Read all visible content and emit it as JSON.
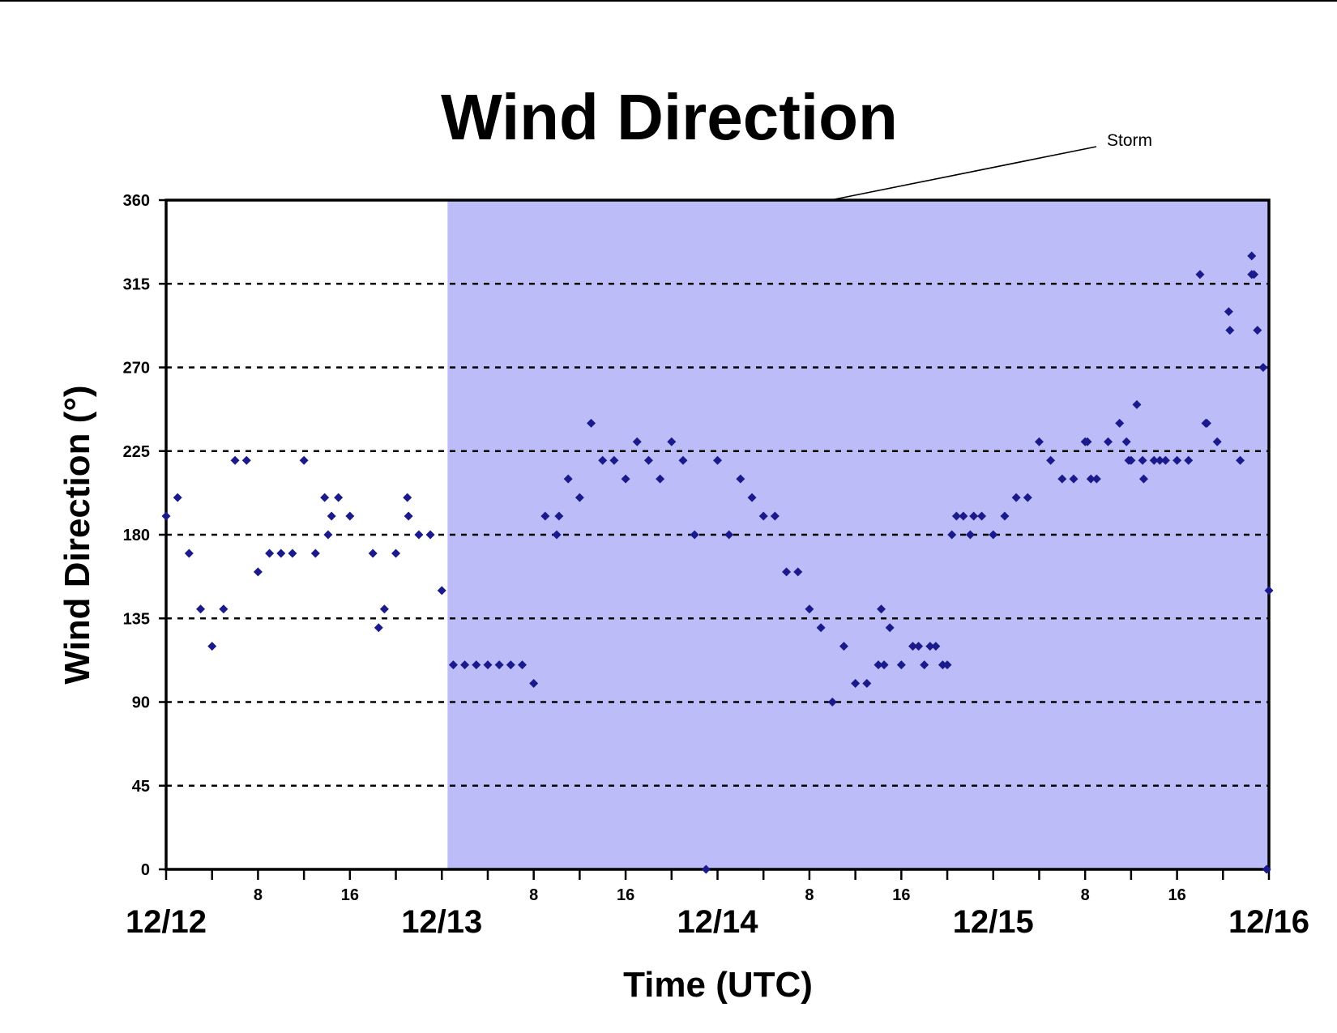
{
  "chart_data": {
    "type": "scatter",
    "title": "Wind Direction",
    "xlabel": "Time (UTC)",
    "ylabel": "Wind Direction (°)",
    "ylim": [
      0,
      360
    ],
    "yticks": [
      0,
      45,
      90,
      135,
      180,
      225,
      270,
      315,
      360
    ],
    "y_grid": "dotted",
    "xlim": [
      "12/12 00:00",
      "12/16 00:00"
    ],
    "date_labels": [
      "12/12",
      "12/13",
      "12/14",
      "12/15",
      "12/16"
    ],
    "hour_labels": [
      "8",
      "16"
    ],
    "annotation": {
      "text": "Storm",
      "region_start": "12/13 00:30",
      "region_end": "12/16 00:00"
    },
    "colors": {
      "marker": "#1a1a8c",
      "storm_shade": "#bcbcf8",
      "axis": "#000000",
      "grid": "#000000"
    },
    "series": [
      {
        "points": [
          [
            "12/12 00:00",
            190
          ],
          [
            "12/12 01:00",
            200
          ],
          [
            "12/12 02:00",
            170
          ],
          [
            "12/12 03:00",
            140
          ],
          [
            "12/12 04:00",
            120
          ],
          [
            "12/12 05:00",
            140
          ],
          [
            "12/12 06:00",
            220
          ],
          [
            "12/12 07:00",
            220
          ],
          [
            "12/12 08:00",
            160
          ],
          [
            "12/12 09:00",
            170
          ],
          [
            "12/12 10:00",
            170
          ],
          [
            "12/12 11:00",
            170
          ],
          [
            "12/12 12:00",
            220
          ],
          [
            "12/12 13:00",
            170
          ],
          [
            "12/12 13:48",
            200
          ],
          [
            "12/12 14:06",
            180
          ],
          [
            "12/12 14:24",
            190
          ],
          [
            "12/12 15:00",
            200
          ],
          [
            "12/12 16:00",
            190
          ],
          [
            "12/12 18:00",
            170
          ],
          [
            "12/12 18:30",
            130
          ],
          [
            "12/12 19:00",
            140
          ],
          [
            "12/12 20:00",
            170
          ],
          [
            "12/12 21:00",
            200
          ],
          [
            "12/12 21:06",
            190
          ],
          [
            "12/12 22:00",
            180
          ],
          [
            "12/12 23:00",
            180
          ],
          [
            "12/13 00:00",
            150
          ],
          [
            "12/13 01:00",
            110
          ],
          [
            "12/13 02:00",
            110
          ],
          [
            "12/13 03:00",
            110
          ],
          [
            "12/13 04:00",
            110
          ],
          [
            "12/13 05:00",
            110
          ],
          [
            "12/13 06:00",
            110
          ],
          [
            "12/13 07:00",
            110
          ],
          [
            "12/13 08:00",
            100
          ],
          [
            "12/13 09:00",
            190
          ],
          [
            "12/13 10:00",
            180
          ],
          [
            "12/13 10:12",
            190
          ],
          [
            "12/13 11:00",
            210
          ],
          [
            "12/13 12:00",
            200
          ],
          [
            "12/13 13:00",
            240
          ],
          [
            "12/13 14:00",
            220
          ],
          [
            "12/13 15:00",
            220
          ],
          [
            "12/13 16:00",
            210
          ],
          [
            "12/13 17:00",
            230
          ],
          [
            "12/13 18:00",
            220
          ],
          [
            "12/13 19:00",
            210
          ],
          [
            "12/13 20:00",
            230
          ],
          [
            "12/13 21:00",
            220
          ],
          [
            "12/13 22:00",
            180
          ],
          [
            "12/13 23:00",
            0
          ],
          [
            "12/14 00:00",
            220
          ],
          [
            "12/14 01:00",
            180
          ],
          [
            "12/14 02:00",
            210
          ],
          [
            "12/14 03:00",
            200
          ],
          [
            "12/14 04:00",
            190
          ],
          [
            "12/14 05:00",
            190
          ],
          [
            "12/14 06:00",
            160
          ],
          [
            "12/14 07:00",
            160
          ],
          [
            "12/14 08:00",
            140
          ],
          [
            "12/14 09:00",
            130
          ],
          [
            "12/14 10:00",
            90
          ],
          [
            "12/14 11:00",
            120
          ],
          [
            "12/14 12:00",
            100
          ],
          [
            "12/14 13:00",
            100
          ],
          [
            "12/14 14:00",
            110
          ],
          [
            "12/14 14:15",
            140
          ],
          [
            "12/14 14:30",
            110
          ],
          [
            "12/14 15:00",
            130
          ],
          [
            "12/14 16:00",
            110
          ],
          [
            "12/14 17:00",
            120
          ],
          [
            "12/14 17:30",
            120
          ],
          [
            "12/14 18:00",
            110
          ],
          [
            "12/14 18:30",
            120
          ],
          [
            "12/14 19:00",
            120
          ],
          [
            "12/14 19:36",
            110
          ],
          [
            "12/14 20:00",
            110
          ],
          [
            "12/14 20:24",
            180
          ],
          [
            "12/14 20:48",
            190
          ],
          [
            "12/14 21:24",
            190
          ],
          [
            "12/14 22:00",
            180
          ],
          [
            "12/14 22:18",
            190
          ],
          [
            "12/14 23:00",
            190
          ],
          [
            "12/15 00:00",
            180
          ],
          [
            "12/15 01:00",
            190
          ],
          [
            "12/15 02:00",
            200
          ],
          [
            "12/15 03:00",
            200
          ],
          [
            "12/15 04:00",
            230
          ],
          [
            "12/15 05:00",
            220
          ],
          [
            "12/15 06:00",
            210
          ],
          [
            "12/15 07:00",
            210
          ],
          [
            "12/15 08:00",
            230
          ],
          [
            "12/15 08:12",
            230
          ],
          [
            "12/15 08:30",
            210
          ],
          [
            "12/15 09:00",
            210
          ],
          [
            "12/15 10:00",
            230
          ],
          [
            "12/15 11:00",
            240
          ],
          [
            "12/15 11:36",
            230
          ],
          [
            "12/15 11:48",
            220
          ],
          [
            "12/15 12:00",
            220
          ],
          [
            "12/15 12:30",
            250
          ],
          [
            "12/15 13:00",
            220
          ],
          [
            "12/15 13:06",
            210
          ],
          [
            "12/15 14:00",
            220
          ],
          [
            "12/15 14:30",
            220
          ],
          [
            "12/15 15:00",
            220
          ],
          [
            "12/15 16:00",
            220
          ],
          [
            "12/15 17:00",
            220
          ],
          [
            "12/15 18:00",
            320
          ],
          [
            "12/15 18:30",
            240
          ],
          [
            "12/15 18:36",
            240
          ],
          [
            "12/15 19:30",
            230
          ],
          [
            "12/15 20:30",
            300
          ],
          [
            "12/15 20:36",
            290
          ],
          [
            "12/15 21:30",
            220
          ],
          [
            "12/15 22:30",
            330
          ],
          [
            "12/15 22:30",
            320
          ],
          [
            "12/15 22:42",
            320
          ],
          [
            "12/15 23:00",
            290
          ],
          [
            "12/15 23:30",
            270
          ],
          [
            "12/15 23:48",
            0
          ],
          [
            "12/16 00:00",
            150
          ]
        ]
      }
    ]
  }
}
